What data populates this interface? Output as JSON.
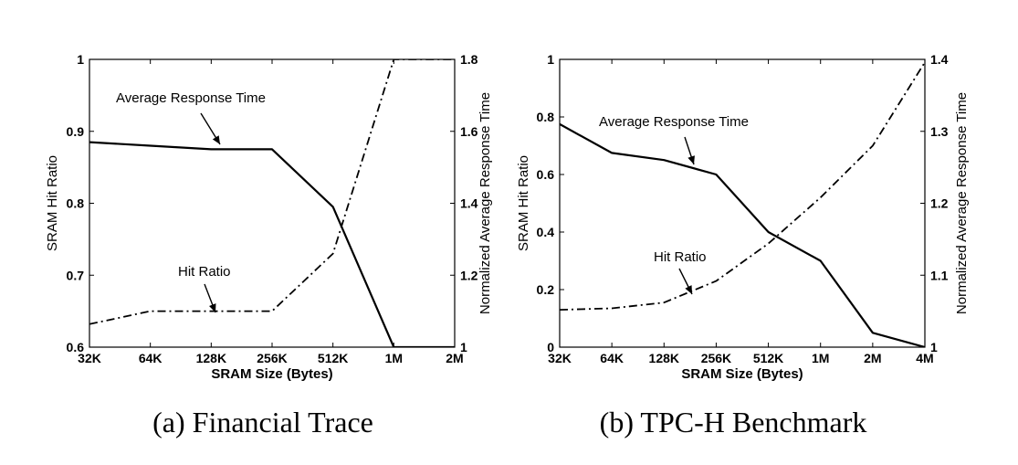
{
  "chart_data": [
    {
      "type": "line",
      "caption": "(a) Financial Trace",
      "xlabel": "SRAM Size (Bytes)",
      "ylabel_left": "SRAM Hit Ratio",
      "ylabel_right": "Normalized Average Response Time",
      "categories": [
        "32K",
        "64K",
        "128K",
        "256K",
        "512K",
        "1M",
        "2M"
      ],
      "yticks_left": [
        "0.6",
        "0.7",
        "0.8",
        "0.9",
        "1"
      ],
      "yticks_right": [
        "1",
        "1.2",
        "1.4",
        "1.6",
        "1.8"
      ],
      "ylim_left": [
        0.6,
        1.0
      ],
      "ylim_right": [
        1.0,
        1.8
      ],
      "series": [
        {
          "name": "Average Response Time",
          "axis": "right",
          "style": "solid",
          "values": [
            1.57,
            1.56,
            1.55,
            1.55,
            1.39,
            1.0,
            1.0
          ]
        },
        {
          "name": "Hit Ratio",
          "axis": "left",
          "style": "dashdot",
          "values": [
            0.632,
            0.65,
            0.65,
            0.65,
            0.73,
            1.0,
            1.0
          ]
        }
      ],
      "annotations": [
        {
          "text": "Average Response Time",
          "target_series": 0,
          "target_index": 2.3
        },
        {
          "text": "Hit Ratio",
          "target_series": 1,
          "target_index": 2.1
        }
      ]
    },
    {
      "type": "line",
      "caption": "(b) TPC-H Benchmark",
      "xlabel": "SRAM Size (Bytes)",
      "ylabel_left": "SRAM Hit Ratio",
      "ylabel_right": "Normalized Average Response Time",
      "categories": [
        "32K",
        "64K",
        "128K",
        "256K",
        "512K",
        "1M",
        "2M",
        "4M"
      ],
      "yticks_left": [
        "0",
        "0.2",
        "0.4",
        "0.6",
        "0.8",
        "1"
      ],
      "yticks_right": [
        "1",
        "1.1",
        "1.2",
        "1.3",
        "1.4"
      ],
      "ylim_left": [
        0,
        1.0
      ],
      "ylim_right": [
        1.0,
        1.4
      ],
      "series": [
        {
          "name": "Average Response Time",
          "axis": "right",
          "style": "solid",
          "values": [
            1.31,
            1.27,
            1.26,
            1.24,
            1.16,
            1.12,
            1.02,
            1.0
          ]
        },
        {
          "name": "Hit Ratio",
          "axis": "left",
          "style": "dashdot",
          "values": [
            0.13,
            0.135,
            0.155,
            0.23,
            0.36,
            0.52,
            0.7,
            0.99
          ]
        }
      ],
      "annotations": [
        {
          "text": "Average Response Time",
          "target_series": 0,
          "target_index": 3.0
        },
        {
          "text": "Hit Ratio",
          "target_series": 1,
          "target_index": 3.3
        }
      ]
    }
  ]
}
